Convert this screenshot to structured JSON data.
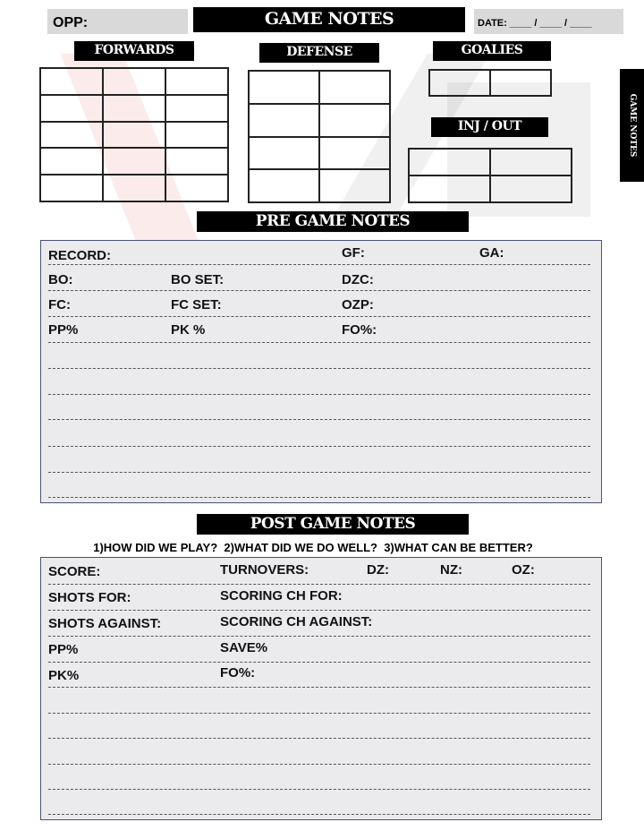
{
  "header": {
    "opp_label": "OPP:",
    "title": "GAME NOTES",
    "date_label": "DATE: ____ / ____ / ____"
  },
  "sections": {
    "forwards": "FORWARDS",
    "defense": "DEFENSE",
    "goalies": "GOALIES",
    "inj_out": "INJ / OUT"
  },
  "side_tab": "GAME NOTES",
  "pre_game": {
    "title": "PRE GAME NOTES",
    "fields": {
      "record": "RECORD:",
      "gf": "GF:",
      "ga": "GA:",
      "bo": "BO:",
      "bo_set": "BO SET:",
      "dzc": "DZC:",
      "fc": "FC:",
      "fc_set": "FC SET:",
      "ozp": "OZP:",
      "pp": "PP%",
      "pk": "PK %",
      "fo": "FO%:"
    }
  },
  "post_game": {
    "title": "POST GAME NOTES",
    "questions": "1)HOW DID WE PLAY?  2)WHAT DID WE DO WELL?  3)WHAT CAN BE BETTER?",
    "fields": {
      "score": "SCORE:",
      "turnovers": "TURNOVERS:",
      "dz": "DZ:",
      "nz": "NZ:",
      "oz": "OZ:",
      "shots_for": "SHOTS FOR:",
      "scoring_ch_for": "SCORING CH FOR:",
      "shots_against": "SHOTS AGAINST:",
      "scoring_ch_against": "SCORING CH AGAINST:",
      "pp": "PP%",
      "save": "SAVE%",
      "pk": "PK%",
      "fo": "FO%:"
    }
  },
  "colors": {
    "label_bg": "#000000",
    "field_bg": "#d9d9d9",
    "notes_bg": "#ebebee",
    "notes_border": "#4b5170",
    "watermark": "#e02020"
  }
}
